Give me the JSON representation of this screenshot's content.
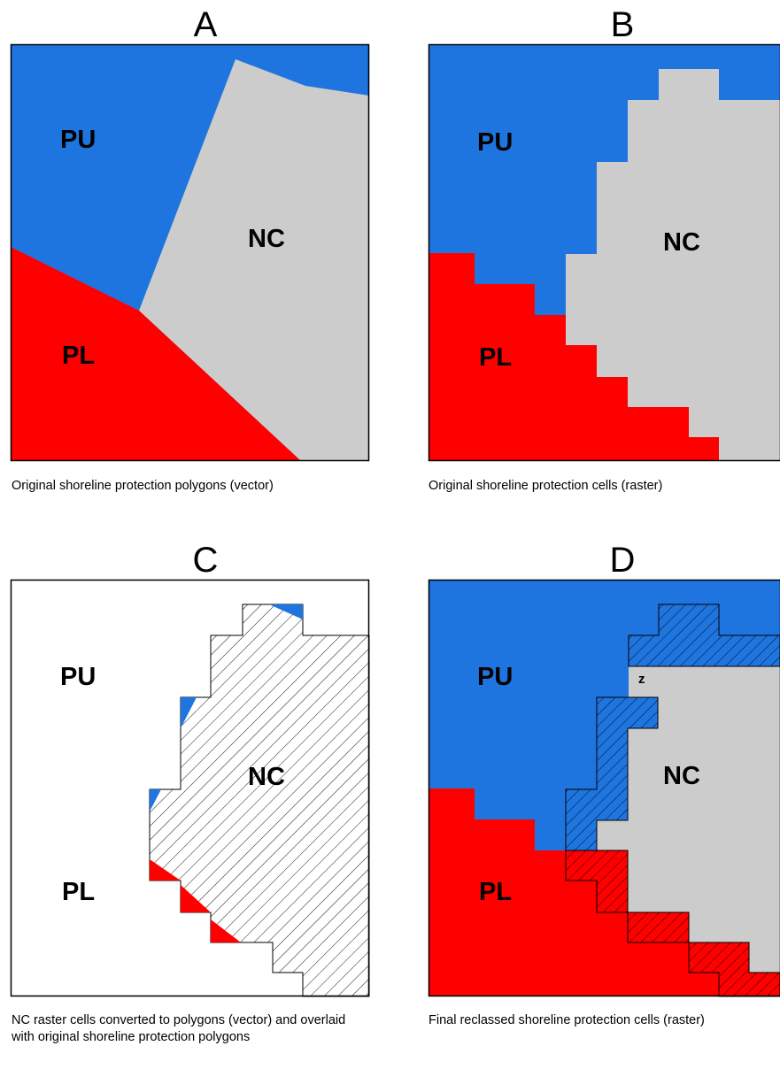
{
  "colors": {
    "PU": "#1f75e0",
    "PL": "#ff0000",
    "NC": "#cccccc",
    "border": "#000000"
  },
  "panels": [
    {
      "letter": "A",
      "caption": "Original shoreline protection polygons (vector)",
      "labels": {
        "PU": "PU",
        "NC": "NC",
        "PL": "PL"
      }
    },
    {
      "letter": "B",
      "caption": "Original shoreline protection cells (raster)",
      "labels": {
        "PU": "PU",
        "NC": "NC",
        "PL": "PL"
      }
    },
    {
      "letter": "C",
      "caption": "NC raster cells converted to polygons (vector) and overlaid with original shoreline protection polygons",
      "labels": {
        "PU": "PU",
        "NC": "NC",
        "PL": "PL"
      }
    },
    {
      "letter": "D",
      "caption": "Final reclassed shoreline protection cells (raster)",
      "labels": {
        "PU": "PU",
        "NC": "NC",
        "PL": "PL",
        "Z": "z"
      }
    }
  ]
}
